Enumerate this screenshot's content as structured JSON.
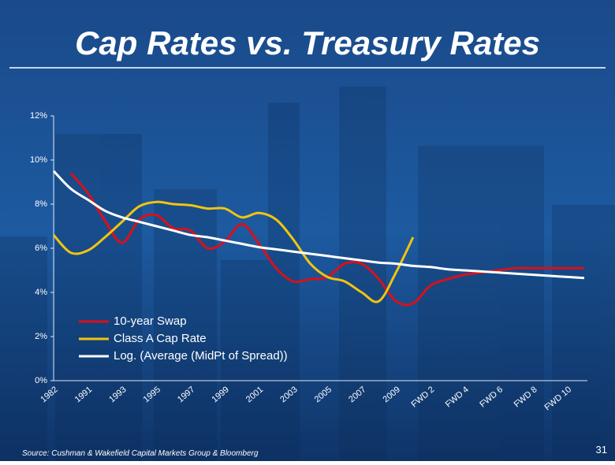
{
  "chart_data": {
    "type": "line",
    "title": "Cap Rates vs. Treasury Rates",
    "source": "Source:  Cushman & Wakefield Capital Markets Group & Bloomberg",
    "page_number": "31",
    "categories": [
      "1982",
      null,
      "1991",
      null,
      "1993",
      null,
      "1995",
      null,
      "1997",
      null,
      "1999",
      null,
      "2001",
      null,
      "2003",
      null,
      "2005",
      null,
      "2007",
      null,
      "2009",
      null,
      "FWD 2",
      null,
      "FWD 4",
      null,
      "FWD 6",
      null,
      "FWD 8",
      null,
      "FWD 10",
      null
    ],
    "series": [
      {
        "name": "10-year Swap",
        "color": "#d9101a",
        "values": [
          null,
          9.4,
          8.5,
          7.25,
          6.25,
          7.3,
          7.5,
          6.9,
          6.8,
          6.0,
          6.3,
          7.1,
          6.2,
          5.1,
          4.5,
          4.6,
          4.7,
          5.3,
          5.3,
          4.6,
          3.6,
          3.5,
          4.3,
          4.6,
          4.8,
          4.9,
          5.0,
          5.1,
          5.1,
          5.1,
          5.1,
          5.1
        ]
      },
      {
        "name": "Class A Cap Rate",
        "color": "#f2c40f",
        "values": [
          6.6,
          5.8,
          5.9,
          6.5,
          7.2,
          7.9,
          8.1,
          8.0,
          7.95,
          7.8,
          7.8,
          7.4,
          7.6,
          7.3,
          6.4,
          5.3,
          4.7,
          4.5,
          4.0,
          3.6,
          4.9,
          6.5,
          null,
          null,
          null,
          null,
          null,
          null,
          null,
          null,
          null,
          null
        ]
      },
      {
        "name": "Log. (Average (MidPt of Spread))",
        "color": "#ffffff",
        "values": [
          9.5,
          8.7,
          8.2,
          7.7,
          7.4,
          7.2,
          7.0,
          6.8,
          6.6,
          6.5,
          6.35,
          6.2,
          6.05,
          5.95,
          5.85,
          5.75,
          5.65,
          5.55,
          5.45,
          5.35,
          5.3,
          5.2,
          5.15,
          5.05,
          5.0,
          4.95,
          4.9,
          4.85,
          4.8,
          4.75,
          4.7,
          4.65
        ]
      }
    ],
    "ylim": [
      0,
      12
    ],
    "yticks": [
      {
        "value": 0,
        "label": "0%"
      },
      {
        "value": 2,
        "label": "2%"
      },
      {
        "value": 4,
        "label": "4%"
      },
      {
        "value": 6,
        "label": "6%"
      },
      {
        "value": 8,
        "label": "8%"
      },
      {
        "value": 10,
        "label": "10%"
      },
      {
        "value": 12,
        "label": "12%"
      }
    ],
    "grid": false,
    "legend": "lower-left"
  }
}
